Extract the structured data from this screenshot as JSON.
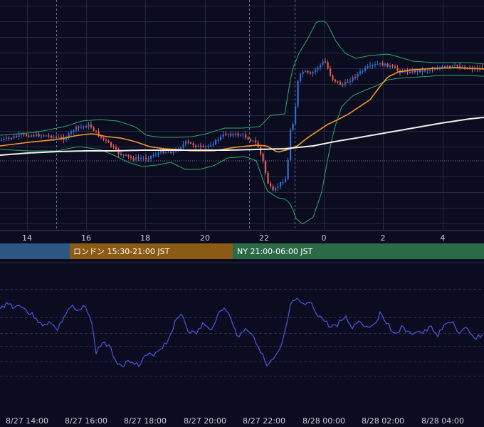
{
  "chart_data": [
    {
      "type": "candlestick",
      "x_ticks": [
        "14",
        "16",
        "18",
        "20",
        "22",
        "0",
        "2",
        "4"
      ],
      "overlays": [
        {
          "kind": "bollinger-bands",
          "color": "#2fa86a"
        },
        {
          "kind": "moving-average-short",
          "color": "#f5962c"
        },
        {
          "kind": "moving-average-long",
          "color": "#f2f2f2"
        }
      ],
      "reference_line_style": "dotted",
      "colors": {
        "up": "#2f6fd6",
        "down": "#e45a52",
        "grid": "#262840",
        "background": "#0b0c1f"
      }
    },
    {
      "type": "line",
      "x_ticks": [
        "8/27 14:00",
        "8/27 16:00",
        "8/27 18:00",
        "8/27 20:00",
        "8/27 22:00",
        "8/28 00:00",
        "8/28 02:00",
        "8/28 04:00"
      ],
      "series": [
        {
          "color": "#4a57e6"
        }
      ]
    }
  ],
  "sessions": [
    {
      "label": "",
      "color": "#2d5683"
    },
    {
      "label": "ロンドン 15:30-21:00 JST",
      "color": "#8b5a15"
    },
    {
      "label": "NY 21:00-06:00 JST",
      "color": "#2b6a47"
    }
  ]
}
